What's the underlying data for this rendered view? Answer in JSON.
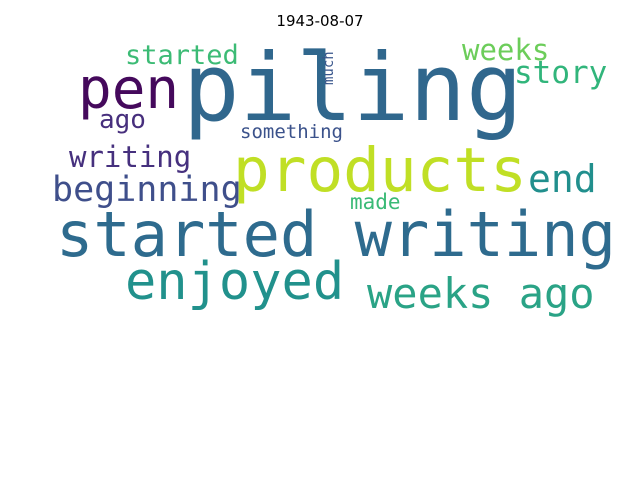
{
  "title": "1943-08-07",
  "words": [
    {
      "text": "piling",
      "color": "#30678d"
    },
    {
      "text": "started writing",
      "color": "#2e6b8e"
    },
    {
      "text": "products",
      "color": "#c0df25"
    },
    {
      "text": "pen",
      "color": "#45095c"
    },
    {
      "text": "enjoyed",
      "color": "#21918c"
    },
    {
      "text": "weeks ago",
      "color": "#2aa386"
    },
    {
      "text": "beginning",
      "color": "#3f4f8b"
    },
    {
      "text": "end",
      "color": "#218f8d"
    },
    {
      "text": "writing",
      "color": "#46307e"
    },
    {
      "text": "story",
      "color": "#31b57b"
    },
    {
      "text": "weeks",
      "color": "#6ccd5a"
    },
    {
      "text": "started",
      "color": "#3cbb75"
    },
    {
      "text": "ago",
      "color": "#472f7d"
    },
    {
      "text": "something",
      "color": "#3b528b"
    },
    {
      "text": "made",
      "color": "#3aba76"
    },
    {
      "text": "much",
      "color": "#39568c"
    }
  ]
}
